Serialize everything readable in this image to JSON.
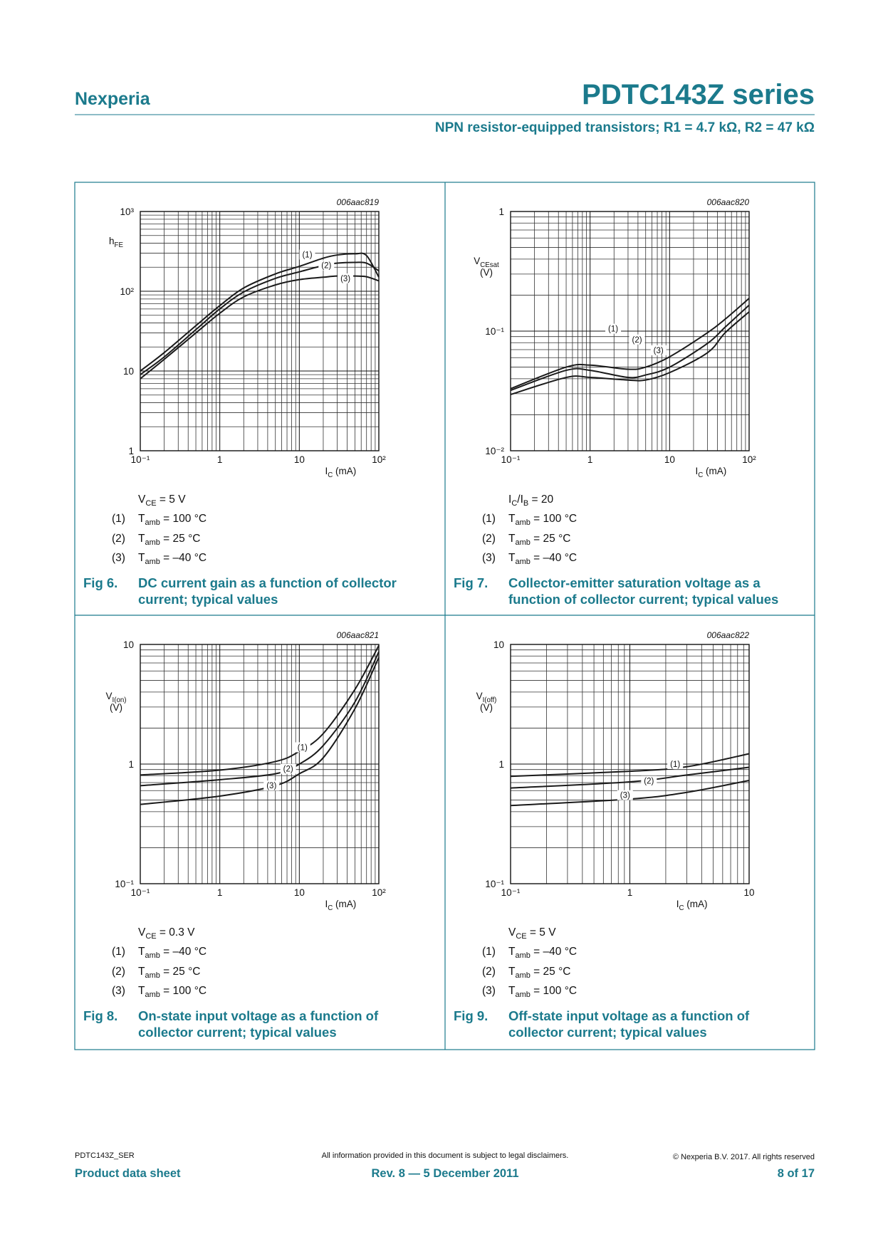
{
  "header": {
    "brand": "Nexperia",
    "title": "PDTC143Z series",
    "subtitle": "NPN resistor-equipped transistors; R1 = 4.7 kΩ, R2 = 47 kΩ"
  },
  "chart_data": [
    {
      "type": "line",
      "code": "006aac819",
      "figure": "Fig 6.",
      "caption": "DC current gain as a function of collector current; typical values",
      "x_label": [
        "I",
        "C",
        " (mA)"
      ],
      "y_label": [
        "h",
        "FE"
      ],
      "log_x": true,
      "log_y": true,
      "grid": true,
      "xlim": [
        0.1,
        100
      ],
      "ylim": [
        1,
        1000
      ],
      "xticks": [
        {
          "value": 0.1,
          "label": "10⁻¹"
        },
        1,
        10,
        {
          "value": 100,
          "label": "10²"
        }
      ],
      "yticks": [
        1,
        10,
        {
          "value": 100,
          "label": "10²"
        },
        {
          "value": 1000,
          "label": "10³"
        }
      ],
      "condition": [
        "V",
        "CE",
        " = 5 V"
      ],
      "series": [
        {
          "name": "(1)",
          "condition": [
            "T",
            "amb",
            " = 100 °C"
          ],
          "color": "#1a1a1a",
          "x": [
            0.1,
            0.2,
            0.5,
            1,
            2,
            5,
            10,
            20,
            30,
            50,
            70,
            100
          ],
          "values": [
            10,
            17,
            37,
            66,
            110,
            165,
            205,
            260,
            285,
            295,
            280,
            150
          ]
        },
        {
          "name": "(2)",
          "condition": [
            "T",
            "amb",
            " = 25 °C"
          ],
          "color": "#1a1a1a",
          "x": [
            0.1,
            0.2,
            0.5,
            1,
            2,
            5,
            10,
            20,
            30,
            50,
            70,
            100
          ],
          "values": [
            9,
            15,
            33,
            60,
            98,
            145,
            175,
            210,
            225,
            230,
            225,
            180
          ]
        },
        {
          "name": "(3)",
          "condition": [
            "T",
            "amb",
            " = –40 °C"
          ],
          "color": "#1a1a1a",
          "x": [
            0.1,
            0.2,
            0.5,
            1,
            2,
            5,
            10,
            20,
            30,
            50,
            70,
            100
          ],
          "values": [
            8,
            14,
            30,
            53,
            85,
            120,
            140,
            150,
            155,
            155,
            152,
            135
          ]
        }
      ]
    },
    {
      "type": "line",
      "code": "006aac820",
      "figure": "Fig 7.",
      "caption": "Collector-emitter saturation voltage as a function of collector current; typical values",
      "x_label": [
        "I",
        "C",
        " (mA)"
      ],
      "y_label": [
        "V",
        "CEsat"
      ],
      "y_unit": "(V)",
      "log_x": true,
      "log_y": true,
      "grid": true,
      "xlim": [
        0.1,
        100
      ],
      "ylim": [
        0.01,
        1
      ],
      "xticks": [
        {
          "value": 0.1,
          "label": "10⁻¹"
        },
        1,
        10,
        {
          "value": 100,
          "label": "10²"
        }
      ],
      "yticks": [
        {
          "value": 0.01,
          "label": "10⁻²"
        },
        {
          "value": 0.1,
          "label": "10⁻¹"
        },
        1
      ],
      "condition": [
        "I",
        "C",
        "/I",
        "B",
        " = 20"
      ],
      "series": [
        {
          "name": "(1)",
          "condition": [
            "T",
            "amb",
            " = 100 °C"
          ],
          "color": "#1a1a1a",
          "x": [
            0.1,
            0.5,
            1,
            3,
            5,
            10,
            30,
            50,
            100
          ],
          "values": [
            0.033,
            0.05,
            0.052,
            0.048,
            0.05,
            0.061,
            0.097,
            0.126,
            0.188
          ]
        },
        {
          "name": "(2)",
          "condition": [
            "T",
            "amb",
            " = 25 °C"
          ],
          "color": "#1a1a1a",
          "x": [
            0.1,
            0.5,
            1,
            3,
            5,
            10,
            30,
            50,
            100
          ],
          "values": [
            0.032,
            0.047,
            0.047,
            0.041,
            0.043,
            0.05,
            0.079,
            0.108,
            0.165
          ]
        },
        {
          "name": "(3)",
          "condition": [
            "T",
            "amb",
            " = –40 °C"
          ],
          "color": "#1a1a1a",
          "x": [
            0.1,
            0.5,
            1,
            3,
            5,
            10,
            30,
            50,
            100
          ],
          "values": [
            0.0295,
            0.041,
            0.041,
            0.039,
            0.039,
            0.045,
            0.066,
            0.097,
            0.145
          ]
        }
      ]
    },
    {
      "type": "line",
      "code": "006aac821",
      "figure": "Fig 8.",
      "caption": "On-state input voltage as a function of collector current; typical values",
      "x_label": [
        "I",
        "C",
        " (mA)"
      ],
      "y_label": [
        "V",
        "I(on)"
      ],
      "y_unit": "(V)",
      "log_x": true,
      "log_y": true,
      "grid": true,
      "xlim": [
        0.1,
        100
      ],
      "ylim": [
        0.1,
        10
      ],
      "xticks": [
        {
          "value": 0.1,
          "label": "10⁻¹"
        },
        1,
        10,
        {
          "value": 100,
          "label": "10²"
        }
      ],
      "yticks": [
        {
          "value": 0.1,
          "label": "10⁻¹"
        },
        1,
        10
      ],
      "condition": [
        "V",
        "CE",
        " = 0.3 V"
      ],
      "series": [
        {
          "name": "(1)",
          "condition": [
            "T",
            "amb",
            " = –40 °C"
          ],
          "color": "#1a1a1a",
          "x": [
            0.1,
            1,
            5,
            10,
            20,
            50,
            100
          ],
          "values": [
            0.81,
            0.89,
            1.05,
            1.28,
            1.8,
            4.2,
            9.8
          ]
        },
        {
          "name": "(2)",
          "condition": [
            "T",
            "amb",
            " = 25 °C"
          ],
          "color": "#1a1a1a",
          "x": [
            0.1,
            1,
            5,
            10,
            20,
            50,
            100
          ],
          "values": [
            0.66,
            0.74,
            0.83,
            1.0,
            1.43,
            3.3,
            8.7
          ]
        },
        {
          "name": "(3)",
          "condition": [
            "T",
            "amb",
            " = 100 °C"
          ],
          "color": "#1a1a1a",
          "x": [
            0.1,
            1,
            5,
            10,
            20,
            50,
            100
          ],
          "values": [
            0.46,
            0.54,
            0.66,
            0.83,
            1.13,
            2.9,
            7.8
          ]
        }
      ]
    },
    {
      "type": "line",
      "code": "006aac822",
      "figure": "Fig 9.",
      "caption": "Off-state input voltage as a function of collector current; typical values",
      "x_label": [
        "I",
        "C",
        " (mA)"
      ],
      "y_label": [
        "V",
        "I(off)"
      ],
      "y_unit": "(V)",
      "log_x": true,
      "log_y": true,
      "grid": true,
      "xlim": [
        0.1,
        10
      ],
      "ylim": [
        0.1,
        10
      ],
      "xticks": [
        {
          "value": 0.1,
          "label": "10⁻¹"
        },
        1,
        10
      ],
      "yticks": [
        {
          "value": 0.1,
          "label": "10⁻¹"
        },
        1,
        10
      ],
      "condition": [
        "V",
        "CE",
        " = 5 V"
      ],
      "series": [
        {
          "name": "(1)",
          "condition": [
            "T",
            "amb",
            " = –40 °C"
          ],
          "color": "#1a1a1a",
          "x": [
            0.1,
            1,
            3,
            10
          ],
          "values": [
            0.79,
            0.87,
            0.95,
            1.22
          ]
        },
        {
          "name": "(2)",
          "condition": [
            "T",
            "amb",
            " = 25 °C"
          ],
          "color": "#1a1a1a",
          "x": [
            0.1,
            1,
            3,
            10
          ],
          "values": [
            0.63,
            0.71,
            0.81,
            0.94
          ]
        },
        {
          "name": "(3)",
          "condition": [
            "T",
            "amb",
            " = 100 °C"
          ],
          "color": "#1a1a1a",
          "x": [
            0.1,
            1,
            3,
            10
          ],
          "values": [
            0.45,
            0.51,
            0.58,
            0.73
          ]
        }
      ]
    }
  ],
  "footer": {
    "doc_id": "PDTC143Z_SER",
    "disclaimer": "All information provided in this document is subject to legal disclaimers.",
    "copyright": "© Nexperia B.V. 2017. All rights reserved",
    "doc_type": "Product data sheet",
    "revision": "Rev. 8 — 5 December 2011",
    "page": "8 of 17"
  }
}
